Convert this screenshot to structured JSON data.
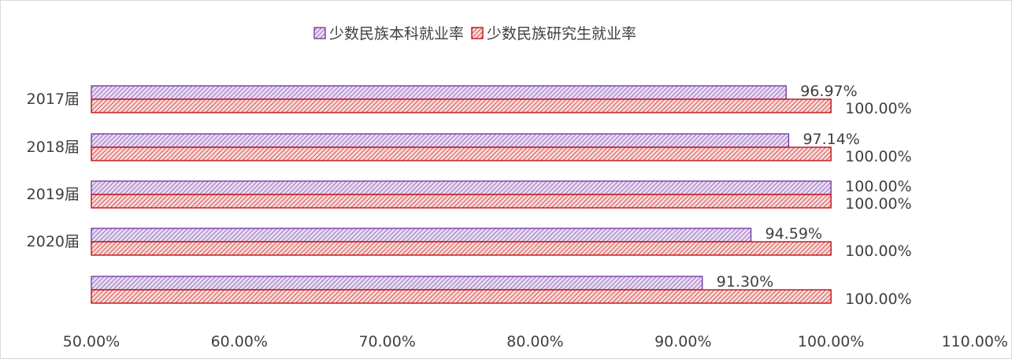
{
  "chart_data": {
    "type": "bar",
    "orientation": "horizontal",
    "categories": [
      "2017届",
      "2018届",
      "2019届",
      "2020届",
      ""
    ],
    "series": [
      {
        "name": "少数民族本科就业率",
        "values": [
          96.97,
          97.14,
          100.0,
          94.59,
          91.3
        ],
        "labels": [
          "96.97%",
          "97.14%",
          "100.00%",
          "94.59%",
          "91.30%"
        ],
        "color": "#7030a0",
        "fill": "#e6dcf2"
      },
      {
        "name": "少数民族研究生就业率",
        "values": [
          100.0,
          100.0,
          100.0,
          100.0,
          100.0
        ],
        "labels": [
          "100.00%",
          "100.00%",
          "100.00%",
          "100.00%",
          "100.00%"
        ],
        "color": "#c00000",
        "fill": "#f7d9d9"
      }
    ],
    "xlim": [
      50,
      110
    ],
    "x_ticks": [
      "50.00%",
      "60.00%",
      "70.00%",
      "80.00%",
      "90.00%",
      "100.00%",
      "110.00%"
    ],
    "grid": false,
    "legend_position": "top"
  }
}
